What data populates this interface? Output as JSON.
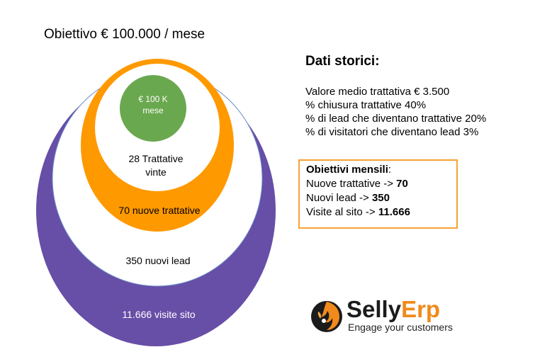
{
  "title": "Obiettivo € 100.000 / mese",
  "funnel": {
    "target": {
      "line1": "€ 100 K",
      "line2": "mese",
      "color": "#6aa84f"
    },
    "won_deals": {
      "line1": "28 Trattative",
      "line2": "vinte"
    },
    "new_deals": {
      "label": "70 nuove trattative",
      "color": "#ff9900"
    },
    "new_leads": {
      "label": "350 nuovi lead"
    },
    "site_visits": {
      "label": "11.666 visite sito",
      "color": "#674ea7"
    }
  },
  "historical": {
    "heading": "Dati storici:",
    "lines": [
      "Valore medio trattativa € 3.500",
      "% chiusura trattative 40%",
      "% di lead che diventano trattative 20%",
      "% di visitatori che diventano lead 3%"
    ]
  },
  "goals": {
    "heading": "Obiettivi mensili",
    "heading_suffix": ":",
    "items": [
      {
        "label": "Nuove trattative -> ",
        "value": "70"
      },
      {
        "label": "Nuovi lead -> ",
        "value": "350"
      },
      {
        "label": "Visite al sito -> ",
        "value": "11.666"
      }
    ],
    "border_color": "#f7a233"
  },
  "logo": {
    "word_part1": "Selly",
    "word_part2": "Erp",
    "tagline": "Engage your customers",
    "icon": "flame-bird-icon"
  }
}
